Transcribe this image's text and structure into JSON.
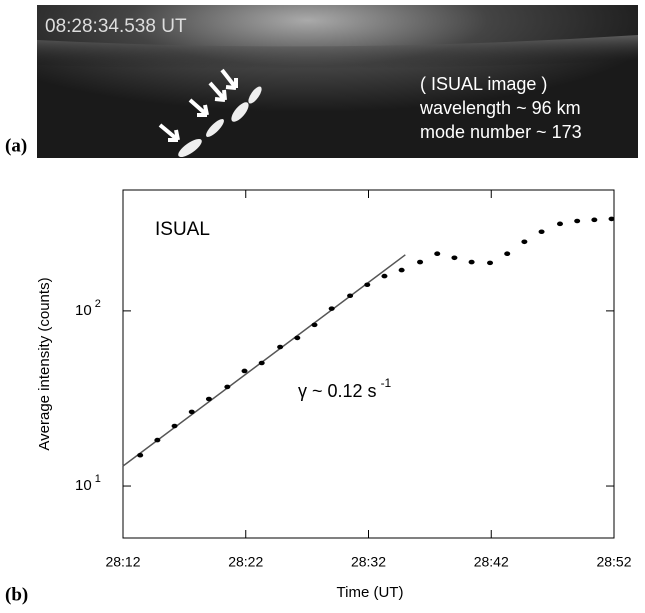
{
  "image_panel": {
    "panel_label": "(a)",
    "timestamp": "08:28:34.538 UT",
    "caption_lines": [
      "( ISUAL image )",
      "wavelength ~ 96 km",
      "mode number ~ 173"
    ]
  },
  "panel_label": "(b)",
  "chart_data": {
    "type": "scatter",
    "y_label": "Average intensity (counts)",
    "x_label": "Time (UT)",
    "annotations": [
      {
        "text": "ISUAL"
      },
      {
        "text": "γ ~ 0.12 s",
        "superscript": "-1"
      }
    ],
    "x": [
      13.4,
      14.8,
      16.2,
      17.6,
      19.0,
      20.5,
      21.9,
      23.3,
      24.8,
      26.2,
      27.6,
      29.0,
      30.5,
      31.9,
      33.3,
      34.7,
      36.2,
      37.6,
      39.0,
      40.4,
      41.9,
      43.3,
      44.7,
      46.1,
      47.6,
      49.0,
      50.4,
      51.8
    ],
    "values": [
      15.0,
      18.3,
      22,
      26.5,
      31.4,
      36.8,
      45.4,
      50.4,
      62.2,
      70.1,
      83.2,
      103,
      122,
      141,
      158,
      171,
      190,
      212,
      201,
      190,
      188,
      212,
      248,
      283,
      314,
      326,
      331,
      335
    ],
    "color": "#000000",
    "fit": {
      "x": [
        12,
        35
      ],
      "values": [
        13,
        209
      ],
      "color": "#555555"
    },
    "xlim": [
      12,
      52
    ],
    "xticks": [
      {
        "value": 12,
        "label": "28:12"
      },
      {
        "value": 22,
        "label": "28:22"
      },
      {
        "value": 32,
        "label": "28:32"
      },
      {
        "value": 42,
        "label": "28:42"
      },
      {
        "value": 52,
        "label": "28:52"
      }
    ],
    "ylim": [
      5.05,
      490
    ],
    "log_y": true,
    "yticks": [
      {
        "value": 10,
        "label": "10",
        "exponent": "1"
      },
      {
        "value": 100,
        "label": "10",
        "exponent": "2"
      }
    ]
  }
}
